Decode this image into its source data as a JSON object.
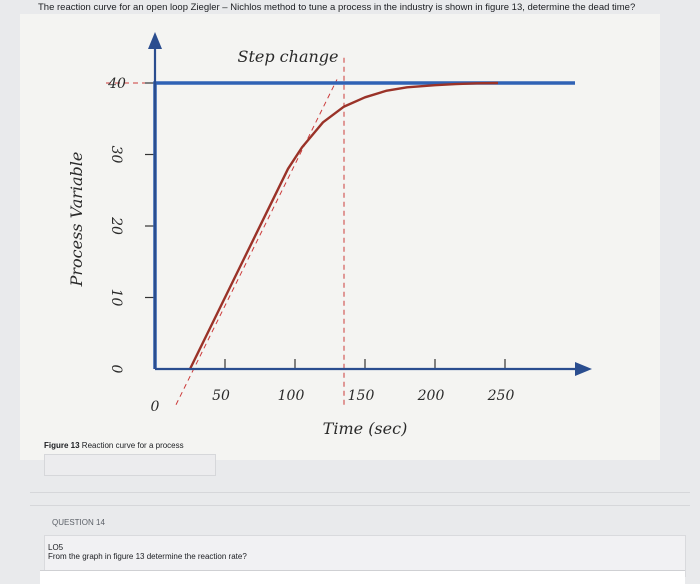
{
  "question": "The reaction curve for an open loop Ziegler – Nichlos method to tune a process in the industry is shown in figure 13, determine the dead time?",
  "caption_bold": "Figure 13",
  "caption_rest": " Reaction curve for a process",
  "question_heading": "QUESTION 14",
  "question_code": "LO5",
  "question_text": "From the graph in figure 13 determine the reaction rate?",
  "colors": {
    "step": "#2f62b5",
    "curve": "#9a3228",
    "guide": "#cc3b3b",
    "axis": "#2a4d8f"
  },
  "chart_data": {
    "type": "line",
    "title": "",
    "annotation": "Step change",
    "xlabel": "Time (sec)",
    "ylabel": "Process Variable",
    "xlim": [
      0,
      290
    ],
    "ylim": [
      0,
      44
    ],
    "x_ticks": [
      0,
      50,
      100,
      150,
      200,
      250
    ],
    "x_tick_labels": [
      "0",
      "50",
      "100",
      "150",
      "200",
      "250"
    ],
    "y_ticks": [
      0,
      10,
      20,
      30,
      40
    ],
    "y_tick_labels": [
      "0",
      "10",
      "20",
      "30",
      "40"
    ],
    "series": [
      {
        "role": "step",
        "x": [
          0,
          0,
          300
        ],
        "y": [
          0,
          40,
          40
        ]
      },
      {
        "role": "response",
        "x": [
          25,
          40,
          60,
          80,
          95,
          105,
          120,
          135,
          150,
          165,
          180,
          200,
          215,
          230,
          245
        ],
        "y": [
          0,
          6,
          14,
          22,
          28,
          31,
          34.5,
          36.7,
          38,
          38.9,
          39.4,
          39.7,
          39.85,
          39.95,
          40
        ]
      },
      {
        "role": "tangent-guide",
        "x": [
          15,
          130
        ],
        "y": [
          -5,
          40.5
        ]
      },
      {
        "role": "vertical-guide",
        "x": [
          135,
          135
        ],
        "y": [
          -5,
          44
        ]
      },
      {
        "role": "level-guide",
        "x": [
          -35,
          300
        ],
        "y": [
          40,
          40
        ]
      }
    ]
  }
}
